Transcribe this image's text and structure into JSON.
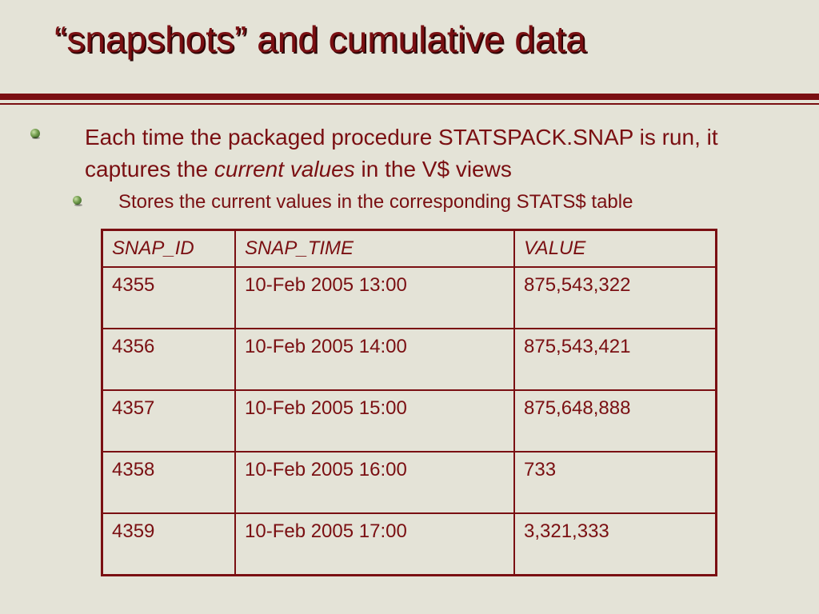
{
  "slide": {
    "title": "“snapshots” and cumulative data",
    "bullet1_pre": "Each time the packaged procedure STATSPACK.SNAP is run, it captures the ",
    "bullet1_em": "current values",
    "bullet1_post": " in the V$ views",
    "bullet2": "Stores the current values in the corresponding STATS$ table"
  },
  "table": {
    "headers": [
      "SNAP_ID",
      "SNAP_TIME",
      "VALUE"
    ],
    "rows": [
      [
        "4355",
        "10-Feb 2005 13:00",
        "875,543,322"
      ],
      [
        "4356",
        "10-Feb 2005 14:00",
        "875,543,421"
      ],
      [
        "4357",
        "10-Feb 2005 15:00",
        "875,648,888"
      ],
      [
        "4358",
        "10-Feb 2005 16:00",
        "733"
      ],
      [
        "4359",
        "10-Feb 2005 17:00",
        "3,321,333"
      ]
    ]
  },
  "colors": {
    "accent": "#7a0f12",
    "background": "#e4e3d7"
  },
  "icons": {
    "bullet": "green-orb-bullet-icon"
  }
}
